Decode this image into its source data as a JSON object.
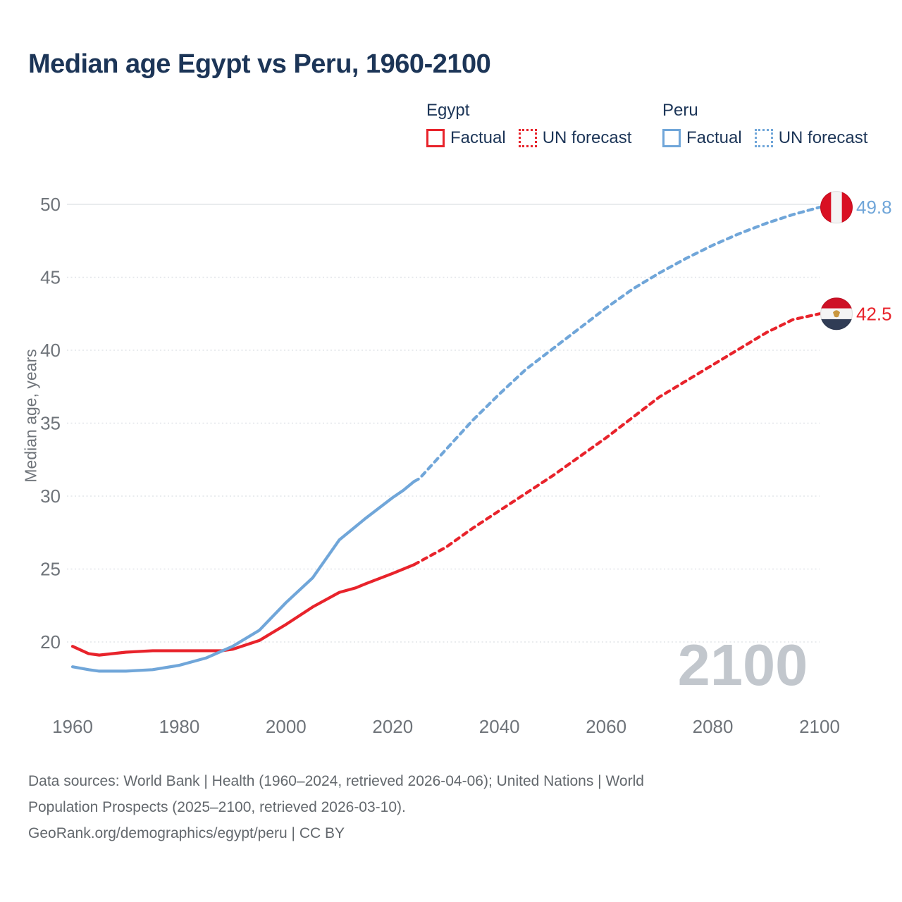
{
  "title": "Median age Egypt vs Peru, 1960-2100",
  "legend": {
    "groups": [
      {
        "name": "Egypt",
        "color": "#e8232b",
        "items": [
          {
            "label": "Factual",
            "style": "solid"
          },
          {
            "label": "UN forecast",
            "style": "dotted"
          }
        ]
      },
      {
        "name": "Peru",
        "color": "#70a6d9",
        "items": [
          {
            "label": "Factual",
            "style": "solid"
          },
          {
            "label": "UN forecast",
            "style": "dotted"
          }
        ]
      }
    ]
  },
  "chart_data": {
    "type": "line",
    "title": "Median age Egypt vs Peru, 1960-2100",
    "xlabel": "",
    "ylabel": "Median age, years",
    "xticks": [
      1960,
      1980,
      2000,
      2020,
      2040,
      2060,
      2080,
      2100
    ],
    "yticks": [
      20,
      25,
      30,
      35,
      40,
      45,
      50
    ],
    "xlim": [
      1959,
      2104
    ],
    "ylim": [
      17.5,
      50.5
    ],
    "grid": "horizontal-only",
    "legend_position": "top-right",
    "watermark": "2100",
    "series": [
      {
        "name": "Egypt",
        "color": "#e8232b",
        "end_label": "42.5",
        "flag": {
          "type": "egypt",
          "orientation": "horizontal",
          "colors": [
            "#ce1126",
            "#f4f4f4",
            "#303c55"
          ],
          "emblem_color": "#c9973f"
        },
        "factual": {
          "x": [
            1960,
            1963,
            1965,
            1970,
            1975,
            1980,
            1985,
            1988,
            1990,
            1995,
            2000,
            2005,
            2010,
            2013,
            2015,
            2020,
            2024
          ],
          "y": [
            19.7,
            19.2,
            19.1,
            19.3,
            19.4,
            19.4,
            19.4,
            19.4,
            19.5,
            20.1,
            21.2,
            22.4,
            23.4,
            23.7,
            24.0,
            24.7,
            25.3
          ]
        },
        "forecast": {
          "x": [
            2024,
            2025,
            2030,
            2035,
            2040,
            2045,
            2050,
            2055,
            2060,
            2065,
            2070,
            2075,
            2080,
            2085,
            2090,
            2095,
            2100
          ],
          "y": [
            25.3,
            25.5,
            26.5,
            27.8,
            29.0,
            30.2,
            31.4,
            32.7,
            34.0,
            35.4,
            36.8,
            37.9,
            39.0,
            40.1,
            41.2,
            42.1,
            42.5
          ]
        }
      },
      {
        "name": "Peru",
        "color": "#70a6d9",
        "end_label": "49.8",
        "flag": {
          "type": "peru",
          "orientation": "vertical",
          "colors": [
            "#d91023",
            "#f4f4f4",
            "#d91023"
          ]
        },
        "factual": {
          "x": [
            1960,
            1963,
            1965,
            1970,
            1975,
            1980,
            1985,
            1990,
            1995,
            2000,
            2005,
            2010,
            2015,
            2020,
            2022,
            2024
          ],
          "y": [
            18.3,
            18.1,
            18.0,
            18.0,
            18.1,
            18.4,
            18.9,
            19.7,
            20.8,
            22.7,
            24.4,
            27.0,
            28.5,
            29.9,
            30.4,
            31.0
          ]
        },
        "forecast": {
          "x": [
            2024,
            2025,
            2030,
            2035,
            2040,
            2045,
            2050,
            2055,
            2060,
            2065,
            2070,
            2075,
            2080,
            2085,
            2090,
            2095,
            2100
          ],
          "y": [
            31.0,
            31.2,
            33.2,
            35.2,
            37.0,
            38.7,
            40.1,
            41.5,
            42.9,
            44.2,
            45.3,
            46.3,
            47.2,
            48.0,
            48.7,
            49.3,
            49.8
          ]
        }
      }
    ],
    "colors": {
      "grid": "#e2e5e9",
      "tick_text": "#6f747a",
      "title_text": "#1c3557",
      "footer_text": "#63686d",
      "watermark_text": "#c2c7cd"
    }
  },
  "footer": {
    "lines": [
      "Data sources: World Bank | Health (1960–2024, retrieved 2026-04-06); United Nations | World",
      "Population Prospects (2025–2100, retrieved 2026-03-10).",
      "GeoRank.org/demographics/egypt/peru | CC BY"
    ]
  }
}
